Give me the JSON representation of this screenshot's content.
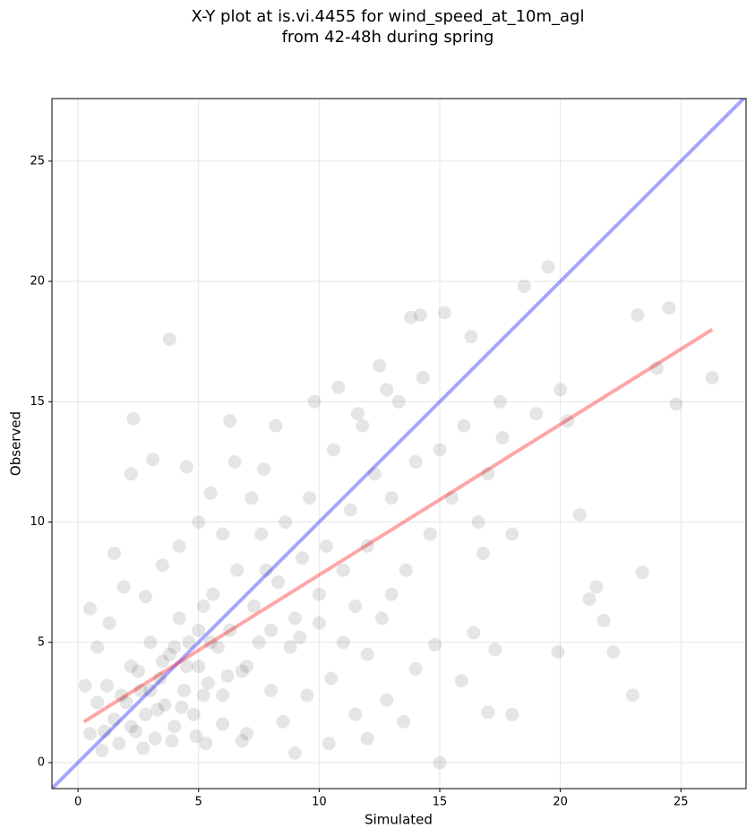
{
  "chart_data": {
    "type": "scatter",
    "title": [
      "X-Y plot at is.vi.4455 for wind_speed_at_10m_agl",
      "from 42-48h during spring"
    ],
    "x_label": "Simulated",
    "y_label": "Observed",
    "xlim": [
      -1.08,
      27.7
    ],
    "ylim": [
      -1.08,
      27.6
    ],
    "xticks": [
      0,
      5,
      10,
      15,
      20,
      25
    ],
    "yticks": [
      0,
      5,
      10,
      15,
      20,
      25
    ],
    "grid": true,
    "series": [
      {
        "color": "#000000",
        "alpha": 0.1,
        "x": [
          0.5,
          0.8,
          1,
          1.2,
          1.5,
          1.7,
          2,
          2.2,
          2.4,
          2.6,
          2.8,
          3,
          3.2,
          3.4,
          3.6,
          3.8,
          4,
          4.2,
          4.4,
          4.6,
          4.8,
          5,
          5.2,
          5.4,
          5.6,
          5.8,
          6,
          6.3,
          6.6,
          7,
          7.3,
          7.6,
          8,
          8.3,
          8.6,
          9,
          9.3,
          9.6,
          10,
          10.3,
          10.6,
          11,
          11.3,
          11.6,
          12,
          12.3,
          12.6,
          13,
          13.3,
          13.6,
          14,
          14.3,
          14.6,
          15,
          15.2,
          15.5,
          16,
          16.3,
          16.6,
          17,
          17.5,
          18,
          18.5,
          19,
          19.5,
          20,
          20.3,
          20.8,
          21.2,
          21.5,
          21.8,
          22.2,
          23,
          23.2,
          23.4,
          24,
          24.5,
          24.8,
          26.3,
          3.8,
          2.3,
          6.3,
          15,
          18,
          17,
          19.9,
          14.8,
          15.9,
          13.5,
          12,
          9,
          10.4,
          11.5,
          12.8,
          14,
          16.4,
          17.3,
          2.2,
          3.1,
          1.5,
          0.5,
          0.8,
          1.3,
          1.9,
          2.8,
          3.5,
          4.2,
          5,
          5.5,
          6,
          6.5,
          7.2,
          7.7,
          8.2,
          4.5,
          5.3,
          6,
          7,
          8,
          6.8,
          9.5,
          10.5,
          11,
          12,
          13,
          9.8,
          10.8,
          11.8,
          12.5,
          13.8,
          14.2,
          12.8,
          7.8,
          8.8,
          3,
          2.5,
          3.5,
          4,
          4.5,
          5,
          5.5,
          1.8,
          2.2,
          3.3,
          4.3,
          5.2,
          6.2,
          7.5,
          0.3,
          1.1,
          2.7,
          3.9,
          4.9,
          6.8,
          8.5,
          9.2,
          10,
          11.5,
          16.8,
          17.6
        ],
        "values": [
          1.2,
          2.5,
          0.5,
          3.2,
          1.8,
          0.8,
          2.5,
          4,
          1.3,
          3,
          2,
          5,
          1,
          3.5,
          2.4,
          4.5,
          1.5,
          6,
          3,
          5,
          2,
          4,
          6.5,
          3.3,
          7,
          4.8,
          2.8,
          5.5,
          8,
          4,
          6.5,
          9.5,
          5.5,
          7.5,
          10,
          6,
          8.5,
          11,
          7,
          9,
          13,
          8,
          10.5,
          14.5,
          9,
          12,
          6,
          11,
          15,
          8,
          12.5,
          16,
          9.5,
          13,
          18.7,
          11,
          14,
          17.7,
          10,
          12,
          15,
          9.5,
          19.8,
          14.5,
          20.6,
          15.5,
          14.2,
          10.3,
          6.8,
          7.3,
          5.9,
          4.6,
          2.8,
          18.6,
          7.9,
          16.4,
          18.9,
          14.9,
          16,
          17.6,
          14.3,
          14.2,
          0,
          2,
          2.1,
          4.6,
          4.9,
          3.4,
          1.7,
          1,
          0.4,
          0.8,
          2,
          2.6,
          3.9,
          5.4,
          4.7,
          12,
          12.6,
          8.7,
          6.4,
          4.8,
          5.8,
          7.3,
          6.9,
          8.2,
          9,
          10,
          11.2,
          9.5,
          12.5,
          11,
          12.2,
          14,
          12.3,
          0.8,
          1.6,
          1.2,
          3,
          3.8,
          2.8,
          3.5,
          5,
          4.5,
          7,
          15,
          15.6,
          14,
          16.5,
          18.5,
          18.6,
          15.5,
          8,
          4.8,
          3,
          3.8,
          4.2,
          4.8,
          4,
          5.5,
          5,
          2.8,
          1.5,
          2.2,
          2.3,
          2.8,
          3.6,
          5,
          3.2,
          1.3,
          0.6,
          0.9,
          1.1,
          0.9,
          1.7,
          5.2,
          5.8,
          6.5,
          8.7,
          13.5
        ]
      }
    ],
    "lines": [
      {
        "color": "#0000ff",
        "alpha": 0.35,
        "x": [
          -1.08,
          27.7
        ],
        "values": [
          -1.08,
          27.7
        ]
      },
      {
        "color": "#ff0000",
        "alpha": 0.35,
        "x": [
          0.25,
          26.3
        ],
        "values": [
          1.7,
          18.0
        ]
      }
    ]
  }
}
